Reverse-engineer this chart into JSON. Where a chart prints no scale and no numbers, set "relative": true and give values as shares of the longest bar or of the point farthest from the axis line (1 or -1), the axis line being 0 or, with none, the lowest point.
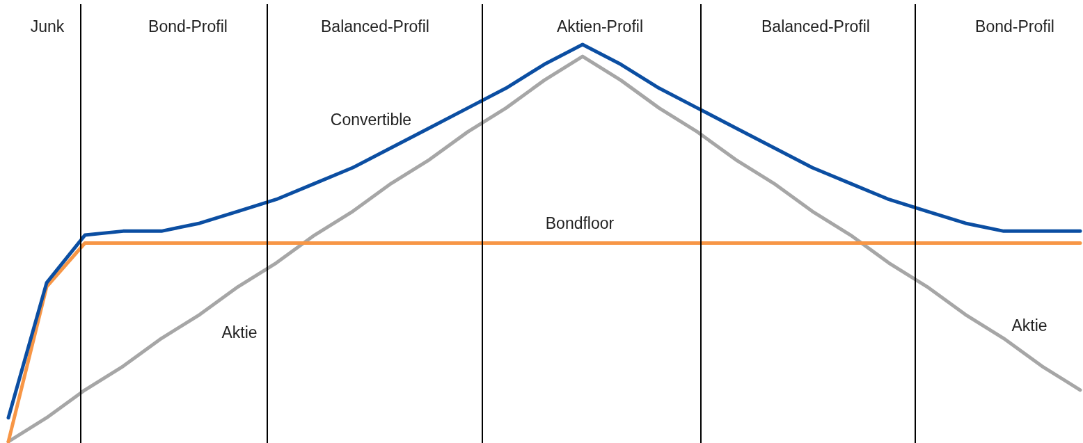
{
  "chart_data": {
    "type": "line",
    "relative": true,
    "tick_labels": false,
    "grid": false,
    "legend": false,
    "marker": "none",
    "categories": [
      null,
      null,
      null,
      null,
      null,
      null,
      null,
      null,
      null,
      null,
      null,
      null,
      null,
      null,
      null,
      null,
      null,
      null,
      null,
      null,
      null,
      null,
      null,
      null,
      null,
      null,
      null,
      null,
      null
    ],
    "series": [
      {
        "color": "#0b4ea2",
        "values": [
          0.06,
          0.4,
          0.52,
          0.53,
          0.53,
          0.55,
          0.58,
          0.61,
          0.65,
          0.69,
          0.74,
          0.79,
          0.84,
          0.89,
          0.95,
          1,
          0.95,
          0.89,
          0.84,
          0.79,
          0.74,
          0.69,
          0.65,
          0.61,
          0.58,
          0.55,
          0.53,
          0.53,
          0.53
        ]
      },
      {
        "color": "#f79646",
        "values": [
          0,
          0.39,
          0.5,
          0.5,
          0.5,
          0.5,
          0.5,
          0.5,
          0.5,
          0.5,
          0.5,
          0.5,
          0.5,
          0.5,
          0.5,
          0.5,
          0.5,
          0.5,
          0.5,
          0.5,
          0.5,
          0.5,
          0.5,
          0.5,
          0.5,
          0.5,
          0.5,
          0.5,
          0.5
        ]
      },
      {
        "color": "#a6a6a6",
        "values": [
          0,
          0.06,
          0.13,
          0.19,
          0.26,
          0.32,
          0.39,
          0.45,
          0.52,
          0.58,
          0.65,
          0.71,
          0.78,
          0.84,
          0.91,
          0.97,
          0.91,
          0.84,
          0.78,
          0.71,
          0.65,
          0.58,
          0.52,
          0.45,
          0.39,
          0.32,
          0.26,
          0.19,
          0.13
        ]
      }
    ],
    "annotations": [
      "Junk",
      "Bond-Profil",
      "Balanced-Profil",
      "Aktien-Profil",
      "Balanced-Profil",
      "Bond-Profil",
      "Convertible",
      "Bondfloor",
      "Aktie",
      "Aktie"
    ]
  }
}
